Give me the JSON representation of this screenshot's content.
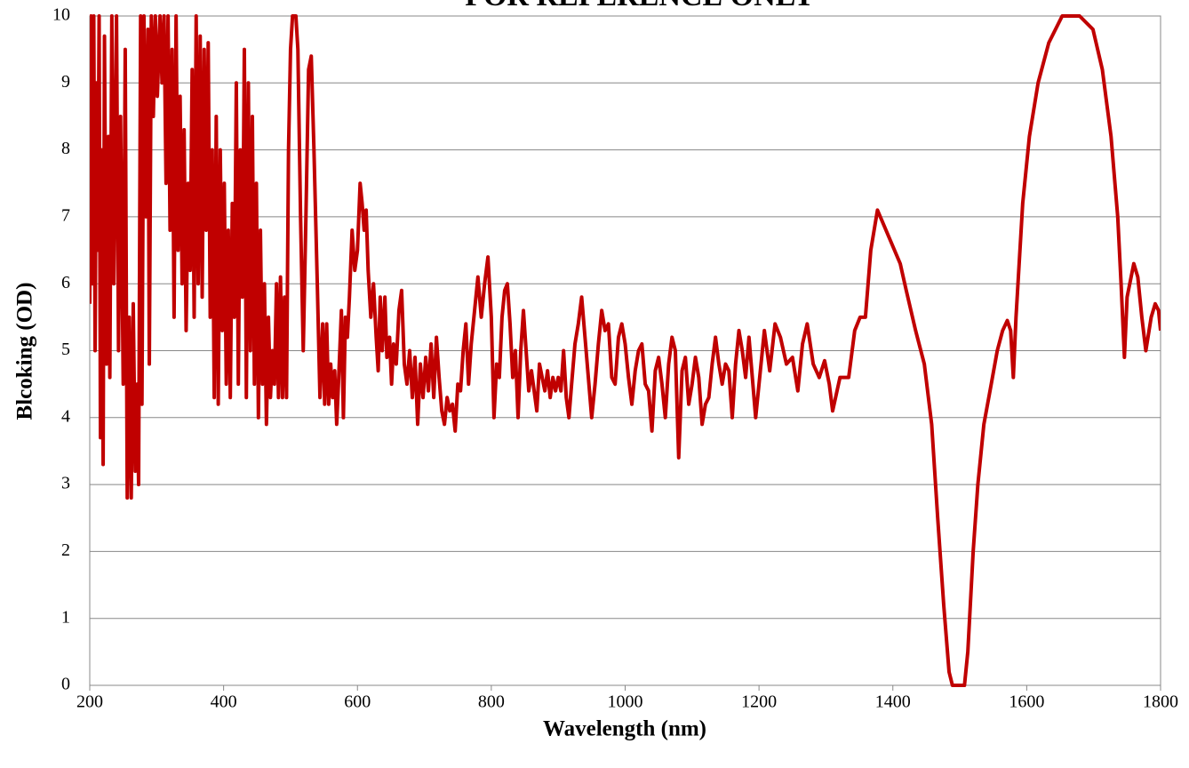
{
  "chart_data": {
    "type": "line",
    "title": "FOR REFERENCE ONLY",
    "x_label": "Wavelength (nm)",
    "y_label": "Blcoking (OD)",
    "color": "#c00000",
    "xlim": [
      200,
      1800
    ],
    "xticks": [
      200,
      400,
      600,
      800,
      1000,
      1200,
      1400,
      1600,
      1800
    ],
    "ylim": [
      0,
      10
    ],
    "yticks": [
      0,
      1,
      2,
      3,
      4,
      5,
      6,
      7,
      8,
      9,
      10
    ],
    "grid": true,
    "x": [
      200,
      202,
      204,
      206,
      208,
      210,
      212,
      214,
      216,
      218,
      220,
      222,
      225,
      228,
      230,
      233,
      236,
      240,
      243,
      246,
      250,
      253,
      256,
      259,
      262,
      265,
      268,
      271,
      273,
      276,
      278,
      281,
      284,
      287,
      289,
      292,
      295,
      298,
      301,
      305,
      308,
      311,
      314,
      317,
      320,
      323,
      326,
      329,
      332,
      335,
      338,
      341,
      344,
      347,
      350,
      353,
      356,
      359,
      362,
      365,
      368,
      371,
      374,
      377,
      380,
      383,
      386,
      389,
      392,
      395,
      398,
      401,
      404,
      407,
      410,
      413,
      416,
      419,
      422,
      425,
      428,
      431,
      434,
      437,
      440,
      443,
      446,
      449,
      452,
      455,
      458,
      461,
      464,
      467,
      470,
      473,
      476,
      479,
      482,
      485,
      488,
      491,
      494,
      497,
      500,
      503,
      508,
      511,
      515,
      519,
      523,
      527,
      531,
      535,
      540,
      544,
      548,
      551,
      554,
      557,
      560,
      563,
      566,
      569,
      572,
      576,
      579,
      582,
      585,
      588,
      592,
      596,
      600,
      604,
      607,
      610,
      613,
      616,
      620,
      624,
      628,
      631,
      634,
      637,
      641,
      644,
      648,
      651,
      654,
      658,
      662,
      666,
      670,
      674,
      678,
      682,
      686,
      690,
      694,
      698,
      702,
      706,
      710,
      714,
      718,
      722,
      726,
      730,
      734,
      738,
      742,
      746,
      750,
      754,
      758,
      762,
      766,
      770,
      775,
      780,
      785,
      790,
      795,
      800,
      804,
      808,
      812,
      816,
      820,
      824,
      828,
      832,
      836,
      840,
      844,
      848,
      852,
      856,
      860,
      864,
      868,
      872,
      876,
      880,
      884,
      888,
      892,
      896,
      900,
      904,
      908,
      912,
      916,
      920,
      925,
      930,
      935,
      940,
      945,
      950,
      955,
      960,
      965,
      970,
      975,
      980,
      985,
      990,
      995,
      1000,
      1005,
      1010,
      1015,
      1020,
      1025,
      1030,
      1035,
      1040,
      1045,
      1050,
      1055,
      1060,
      1065,
      1070,
      1075,
      1080,
      1085,
      1090,
      1095,
      1100,
      1105,
      1110,
      1115,
      1120,
      1125,
      1130,
      1135,
      1140,
      1145,
      1150,
      1155,
      1160,
      1165,
      1170,
      1175,
      1180,
      1185,
      1195,
      1208,
      1216,
      1224,
      1232,
      1241,
      1250,
      1258,
      1265,
      1272,
      1281,
      1290,
      1298,
      1305,
      1310,
      1321,
      1334,
      1343,
      1351,
      1359,
      1367,
      1377,
      1394,
      1411,
      1420,
      1434,
      1447,
      1458,
      1467,
      1476,
      1484,
      1489,
      1507,
      1512,
      1520,
      1527,
      1536,
      1547,
      1556,
      1564,
      1571,
      1576,
      1580,
      1584,
      1594,
      1604,
      1617,
      1633,
      1653,
      1679,
      1699,
      1713,
      1726,
      1736,
      1741,
      1746,
      1750,
      1760,
      1766,
      1772,
      1778,
      1786,
      1792,
      1797,
      1800
    ],
    "values": [
      5.7,
      10,
      6,
      10,
      5,
      9,
      6.5,
      10,
      3.7,
      8,
      3.3,
      9.7,
      4.8,
      8.2,
      4.6,
      10,
      6,
      10,
      5,
      8.5,
      4.5,
      9.5,
      2.8,
      5.5,
      2.8,
      5.7,
      3.2,
      4.5,
      3,
      10,
      4.2,
      10,
      7,
      9.8,
      4.8,
      10,
      8.5,
      10,
      8.8,
      10,
      9,
      10,
      7.5,
      10,
      6.8,
      9.5,
      5.5,
      10,
      6.5,
      8.8,
      6,
      8.3,
      5.3,
      7.5,
      6.2,
      9.2,
      5.5,
      10,
      6,
      9.7,
      5.8,
      9.5,
      6.8,
      9.6,
      5.5,
      8,
      4.3,
      8.5,
      4.2,
      8,
      5.3,
      7.5,
      4.5,
      6.8,
      4.3,
      7.2,
      5.5,
      9,
      4.5,
      8,
      5.8,
      9.5,
      4.3,
      9,
      5,
      8.5,
      4.5,
      7.5,
      4,
      6.8,
      4.5,
      6,
      3.9,
      5.5,
      4.3,
      5,
      4.5,
      6,
      4.3,
      6.1,
      4.3,
      5.8,
      4.3,
      8,
      9.5,
      10,
      10,
      9.5,
      7,
      5,
      7,
      9.2,
      9.4,
      8,
      6,
      4.3,
      5.4,
      4.2,
      5.4,
      4.2,
      4.8,
      4.3,
      4.7,
      3.9,
      4.6,
      5.6,
      4,
      5.5,
      5.2,
      5.8,
      6.8,
      6.2,
      6.5,
      7.5,
      7.2,
      6.8,
      7.1,
      6.2,
      5.5,
      6,
      5.2,
      4.7,
      5.8,
      5,
      5.8,
      4.9,
      5.2,
      4.5,
      5.1,
      4.8,
      5.6,
      5.9,
      4.8,
      4.5,
      5,
      4.3,
      4.9,
      3.9,
      4.8,
      4.3,
      4.9,
      4.4,
      5.1,
      4.3,
      5.2,
      4.6,
      4.1,
      3.9,
      4.3,
      4.1,
      4.2,
      3.8,
      4.5,
      4.4,
      5,
      5.4,
      4.5,
      5.1,
      5.6,
      6.1,
      5.5,
      6,
      6.4,
      5.5,
      4,
      4.8,
      4.6,
      5.5,
      5.9,
      6,
      5.4,
      4.6,
      5,
      4,
      5,
      5.6,
      5,
      4.4,
      4.7,
      4.4,
      4.1,
      4.8,
      4.6,
      4.4,
      4.7,
      4.3,
      4.6,
      4.4,
      4.6,
      4.4,
      5,
      4.3,
      4,
      4.5,
      5.1,
      5.4,
      5.8,
      5.2,
      4.6,
      4,
      4.5,
      5.1,
      5.6,
      5.3,
      5.4,
      4.6,
      4.5,
      5.2,
      5.4,
      5.1,
      4.6,
      4.2,
      4.7,
      5,
      5.1,
      4.5,
      4.4,
      3.8,
      4.7,
      4.9,
      4.5,
      4,
      4.8,
      5.2,
      5,
      3.4,
      4.7,
      4.9,
      4.2,
      4.5,
      4.9,
      4.6,
      3.9,
      4.2,
      4.3,
      4.8,
      5.2,
      4.8,
      4.5,
      4.8,
      4.7,
      4,
      4.8,
      5.3,
      5,
      4.6,
      5.2,
      4,
      5.3,
      4.7,
      5.4,
      5.2,
      4.8,
      4.9,
      4.4,
      5.1,
      5.4,
      4.8,
      4.6,
      4.85,
      4.5,
      4.1,
      4.6,
      4.6,
      5.3,
      5.5,
      5.5,
      6.5,
      7.1,
      6.7,
      6.3,
      5.9,
      5.3,
      4.8,
      3.9,
      2.5,
      1.2,
      0.2,
      0,
      0,
      0.5,
      2,
      3,
      3.9,
      4.5,
      5,
      5.3,
      5.45,
      5.3,
      4.6,
      5.5,
      7.2,
      8.2,
      9,
      9.6,
      10,
      10,
      9.8,
      9.2,
      8.2,
      7,
      6,
      4.9,
      5.8,
      6.3,
      6.1,
      5.5,
      5,
      5.5,
      5.7,
      5.6,
      5.3
    ]
  }
}
